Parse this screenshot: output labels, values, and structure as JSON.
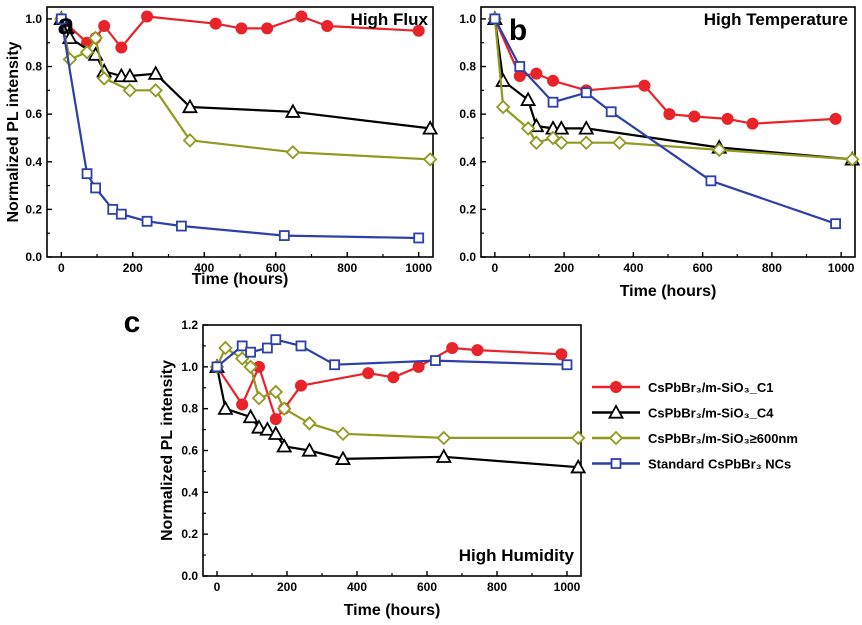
{
  "figure_legend": [
    {
      "key": "c1",
      "label": "CsPbBr₃/m-SiO₃_C1",
      "color": "#e8232a",
      "marker": "circle"
    },
    {
      "key": "c4",
      "label": "CsPbBr₃/m-SiO₃_C4",
      "color": "#000000",
      "marker": "triangle"
    },
    {
      "key": "g600",
      "label": "CsPbBr₃/m-SiO₃≥600nm",
      "color": "#8f9a1e",
      "marker": "diamond"
    },
    {
      "key": "std",
      "label": "Standard CsPbBr₃ NCs",
      "color": "#2d3fa8",
      "marker": "square"
    }
  ],
  "chart_data": [
    {
      "panel_label": "a",
      "type": "line",
      "title": "High Flux",
      "xlabel": "Time (hours)",
      "ylabel": "Normalized PL intensity",
      "xlim": [
        -40,
        1040
      ],
      "ylim": [
        0.0,
        1.05
      ],
      "xticks": [
        0,
        200,
        400,
        600,
        800,
        1000
      ],
      "yticks": [
        0.0,
        0.2,
        0.4,
        0.6,
        0.8,
        1.0
      ],
      "xtick_labels": [
        "0",
        "200",
        "400",
        "600",
        "800",
        "1000"
      ],
      "ytick_labels": [
        "0.0",
        "0.2",
        "0.4",
        "0.6",
        "0.8",
        "1.0"
      ],
      "series": [
        {
          "key": "c1",
          "x": [
            0,
            72,
            96,
            120,
            168,
            240,
            432,
            504,
            576,
            672,
            744,
            1000
          ],
          "y": [
            1.0,
            0.9,
            0.92,
            0.97,
            0.88,
            1.01,
            0.98,
            0.96,
            0.96,
            1.01,
            0.97,
            0.95
          ]
        },
        {
          "key": "c4",
          "x": [
            0,
            24,
            96,
            120,
            168,
            192,
            264,
            360,
            648,
            1032
          ],
          "y": [
            1.0,
            0.92,
            0.85,
            0.78,
            0.76,
            0.76,
            0.77,
            0.63,
            0.61,
            0.54
          ]
        },
        {
          "key": "g600",
          "x": [
            0,
            24,
            72,
            96,
            120,
            192,
            264,
            360,
            648,
            1032
          ],
          "y": [
            1.0,
            0.83,
            0.86,
            0.92,
            0.75,
            0.7,
            0.7,
            0.49,
            0.44,
            0.41
          ]
        },
        {
          "key": "std",
          "x": [
            0,
            72,
            96,
            144,
            168,
            240,
            336,
            624,
            1000
          ],
          "y": [
            1.0,
            0.35,
            0.29,
            0.2,
            0.18,
            0.15,
            0.13,
            0.09,
            0.08
          ]
        }
      ]
    },
    {
      "panel_label": "b",
      "type": "line",
      "title": "High Temperature",
      "xlabel": "Time (hours)",
      "ylabel": "",
      "xlim": [
        -40,
        1040
      ],
      "ylim": [
        0.0,
        1.05
      ],
      "xticks": [
        0,
        200,
        400,
        600,
        800,
        1000
      ],
      "yticks": [
        0.0,
        0.2,
        0.4,
        0.6,
        0.8,
        1.0
      ],
      "xtick_labels": [
        "0",
        "200",
        "400",
        "600",
        "800",
        "1000"
      ],
      "ytick_labels": [
        "0.0",
        "0.2",
        "0.4",
        "0.6",
        "0.8",
        "1.0"
      ],
      "series": [
        {
          "key": "c1",
          "x": [
            0,
            72,
            120,
            168,
            264,
            432,
            504,
            576,
            672,
            744,
            984
          ],
          "y": [
            1.0,
            0.76,
            0.77,
            0.74,
            0.7,
            0.72,
            0.6,
            0.59,
            0.58,
            0.56,
            0.58
          ]
        },
        {
          "key": "c4",
          "x": [
            0,
            24,
            96,
            120,
            168,
            192,
            264,
            648,
            1032
          ],
          "y": [
            1.0,
            0.74,
            0.66,
            0.55,
            0.54,
            0.54,
            0.54,
            0.46,
            0.41
          ]
        },
        {
          "key": "g600",
          "x": [
            0,
            24,
            96,
            120,
            168,
            192,
            264,
            360,
            648,
            1032
          ],
          "y": [
            1.0,
            0.63,
            0.54,
            0.48,
            0.5,
            0.48,
            0.48,
            0.48,
            0.45,
            0.41
          ]
        },
        {
          "key": "std",
          "x": [
            0,
            72,
            168,
            264,
            336,
            624,
            984
          ],
          "y": [
            1.0,
            0.8,
            0.65,
            0.69,
            0.61,
            0.32,
            0.14
          ]
        }
      ]
    },
    {
      "panel_label": "c",
      "type": "line",
      "title": "High Humidity",
      "xlabel": "Time (hours)",
      "ylabel": "Normalized PL intensity",
      "xlim": [
        -40,
        1040
      ],
      "ylim": [
        0.0,
        1.2
      ],
      "xticks": [
        0,
        200,
        400,
        600,
        800,
        1000
      ],
      "yticks": [
        0.0,
        0.2,
        0.4,
        0.6,
        0.8,
        1.0,
        1.2
      ],
      "xtick_labels": [
        "0",
        "200",
        "400",
        "600",
        "800",
        "1000"
      ],
      "ytick_labels": [
        "0.0",
        "0.2",
        "0.4",
        "0.6",
        "0.8",
        "1.0",
        "1.2"
      ],
      "series": [
        {
          "key": "c1",
          "x": [
            0,
            72,
            120,
            168,
            192,
            240,
            432,
            504,
            576,
            672,
            744,
            984
          ],
          "y": [
            1.0,
            0.82,
            1.0,
            0.75,
            0.8,
            0.91,
            0.97,
            0.95,
            1.0,
            1.09,
            1.08,
            1.06
          ]
        },
        {
          "key": "c4",
          "x": [
            0,
            24,
            96,
            120,
            144,
            168,
            192,
            264,
            360,
            648,
            1032
          ],
          "y": [
            1.0,
            0.8,
            0.76,
            0.71,
            0.7,
            0.68,
            0.62,
            0.6,
            0.56,
            0.57,
            0.52
          ]
        },
        {
          "key": "g600",
          "x": [
            0,
            24,
            72,
            96,
            120,
            168,
            192,
            264,
            360,
            648,
            1032
          ],
          "y": [
            1.0,
            1.09,
            1.04,
            1.0,
            0.85,
            0.88,
            0.8,
            0.73,
            0.68,
            0.66,
            0.66
          ]
        },
        {
          "key": "std",
          "x": [
            0,
            72,
            96,
            144,
            168,
            240,
            336,
            624,
            1000
          ],
          "y": [
            1.0,
            1.1,
            1.07,
            1.09,
            1.13,
            1.1,
            1.01,
            1.03,
            1.01
          ]
        }
      ]
    }
  ]
}
